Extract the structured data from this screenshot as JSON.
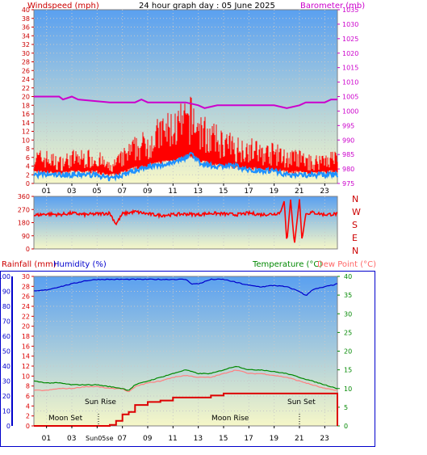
{
  "header": {
    "left_title": "Windspeed (mph)",
    "center_title": "24 hour graph day : 05 June 2025",
    "right_title": "Barometer (mb)"
  },
  "colors": {
    "wind_axis": "#cc0000",
    "baro_axis": "#cc00cc",
    "wind_speed": "#ff0000",
    "wind_gust": "#ff0000",
    "wind_avg": "#1e90ff",
    "barometer": "#cc00cc",
    "direction": "#ff0000",
    "humidity": "#0000cc",
    "rain": "#dd0000",
    "temperature": "#008800",
    "dewpoint": "#ff8080",
    "temp_axis": "#008800",
    "dew_axis": "#ff6666",
    "sky_top": "#5aa0f0",
    "sky_bottom": "#f6f7c8"
  },
  "x_axis": {
    "ticks": [
      "01",
      "03",
      "05",
      "07",
      "09",
      "11",
      "13",
      "15",
      "17",
      "19",
      "21",
      "23"
    ]
  },
  "panel1": {
    "wind_ticks": [
      "0",
      "2",
      "4",
      "6",
      "8",
      "10",
      "12",
      "14",
      "16",
      "18",
      "20",
      "22",
      "24",
      "26",
      "28",
      "30",
      "32",
      "34",
      "36",
      "38",
      "40"
    ],
    "baro_ticks": [
      "975",
      "980",
      "985",
      "990",
      "995",
      "1000",
      "1005",
      "1010",
      "1015",
      "1020",
      "1025",
      "1030",
      "1035"
    ]
  },
  "panel2": {
    "deg_ticks": [
      "360",
      "270",
      "180",
      "90",
      "0"
    ],
    "compass": [
      "N",
      "W",
      "S",
      "E",
      "N"
    ]
  },
  "panel3": {
    "rain_label": "Rainfall (mm)",
    "humidity_label": "Humidity (%)",
    "temp_label": "Temperature (°C)",
    "dew_label": "Dew Point (°C)",
    "humidity_ticks": [
      "0",
      "10",
      "20",
      "30",
      "40",
      "50",
      "60",
      "70",
      "80",
      "90",
      "100"
    ],
    "rain_ticks": [
      "0",
      "2",
      "4",
      "6",
      "8",
      "10",
      "12",
      "14",
      "16",
      "18",
      "20",
      "22",
      "24",
      "26",
      "28",
      "30"
    ],
    "temp_ticks": [
      "0",
      "5",
      "10",
      "15",
      "20",
      "25",
      "30",
      "35",
      "40"
    ],
    "annotations": {
      "moon_set": "Moon Set",
      "sun_rise": "Sun Rise",
      "moon_rise": "Moon Rise",
      "sun_set": "Sun Set",
      "x_sunrise_label": "Sun05se"
    }
  },
  "chart_data": [
    {
      "type": "line",
      "title": "24 hour graph day : 05 June 2025",
      "xlabel": "",
      "ylabel": "Windspeed (mph)",
      "y2label": "Barometer (mb)",
      "xlim": [
        0,
        24
      ],
      "ylim": [
        0,
        40
      ],
      "y2lim": [
        975,
        1035
      ],
      "x_unit": "hour",
      "series": [
        {
          "name": "Gust",
          "axis": "left",
          "x": [
            0,
            1,
            2,
            3,
            4,
            5,
            6,
            7,
            8,
            9,
            10,
            11,
            12,
            12.5,
            13,
            14,
            15,
            16,
            17,
            18,
            19,
            20,
            21,
            22,
            23,
            24
          ],
          "values": [
            5,
            5,
            4,
            5,
            5,
            5,
            3,
            5,
            7,
            8,
            10,
            11,
            12,
            13,
            11,
            9,
            8,
            7,
            7,
            6,
            6,
            5,
            5,
            4,
            5,
            5
          ]
        },
        {
          "name": "Average",
          "axis": "left",
          "x": [
            0,
            1,
            2,
            3,
            4,
            5,
            6,
            7,
            8,
            9,
            10,
            11,
            12,
            12.5,
            13,
            14,
            15,
            16,
            17,
            18,
            19,
            20,
            21,
            22,
            23,
            24
          ],
          "values": [
            2,
            2,
            2,
            2,
            2,
            2,
            1,
            2,
            3,
            4,
            4,
            5,
            6,
            7,
            5,
            4,
            4,
            4,
            3,
            3,
            3,
            2,
            2,
            2,
            2,
            2
          ]
        },
        {
          "name": "Barometer",
          "axis": "right",
          "x": [
            0,
            2,
            2.3,
            3,
            3.5,
            6,
            7,
            8,
            8.5,
            9,
            10,
            12,
            13,
            13.5,
            14.5,
            15,
            16,
            18,
            19,
            20,
            21,
            21.5,
            22,
            23,
            23.5,
            24
          ],
          "values": [
            1005,
            1005,
            1004,
            1005,
            1004,
            1003,
            1003,
            1003,
            1004,
            1003,
            1003,
            1003,
            1002,
            1001,
            1002,
            1002,
            1002,
            1002,
            1002,
            1001,
            1002,
            1003,
            1003,
            1003,
            1004,
            1004
          ]
        }
      ]
    },
    {
      "type": "line",
      "title": "",
      "ylabel": "Wind direction",
      "xlim": [
        0,
        24
      ],
      "ylim": [
        0,
        360
      ],
      "series": [
        {
          "name": "Direction",
          "x": [
            0,
            1,
            2,
            3,
            4,
            5,
            6,
            6.5,
            7,
            8,
            9,
            10,
            11,
            12,
            13,
            14,
            15,
            16,
            17,
            18,
            19,
            19.5,
            19.8,
            20,
            20.3,
            20.6,
            21,
            21.2,
            21.5,
            22,
            23,
            24
          ],
          "values": [
            230,
            240,
            235,
            245,
            235,
            240,
            245,
            170,
            240,
            255,
            240,
            230,
            235,
            240,
            235,
            245,
            240,
            235,
            245,
            235,
            240,
            250,
            330,
            40,
            340,
            30,
            340,
            60,
            240,
            250,
            235,
            240
          ]
        }
      ]
    },
    {
      "type": "line",
      "title": "",
      "ylabel": "Humidity (%)",
      "xlim": [
        0,
        24
      ],
      "ylim": [
        0,
        100
      ],
      "series": [
        {
          "name": "Humidity",
          "axis": "humidity",
          "x": [
            0,
            1,
            2,
            3,
            4,
            5,
            6,
            7,
            8,
            9,
            10,
            11,
            12,
            12.5,
            13,
            14,
            15,
            16,
            17,
            18,
            19,
            20,
            21,
            21.5,
            22,
            23,
            24
          ],
          "values": [
            90,
            91,
            93,
            95,
            97,
            98,
            98,
            98,
            98,
            98,
            98,
            98,
            98,
            95,
            95,
            98,
            98,
            96,
            94,
            93,
            94,
            93,
            90,
            87,
            91,
            93,
            95
          ]
        },
        {
          "name": "Rainfall",
          "axis": "rain",
          "x": [
            0,
            5,
            6,
            6.5,
            7,
            7.5,
            8,
            9,
            10,
            11,
            13,
            14,
            15,
            24,
            24
          ],
          "values": [
            0,
            0,
            0.2,
            1.0,
            2.3,
            2.8,
            4.2,
            4.8,
            5.1,
            5.7,
            5.7,
            6.1,
            6.5,
            6.5,
            0
          ]
        },
        {
          "name": "Temperature",
          "axis": "temp",
          "x": [
            0,
            1,
            2,
            3,
            4,
            5,
            6,
            7,
            7.5,
            8,
            9,
            10,
            11,
            12,
            13,
            14,
            15,
            16,
            17,
            18,
            19,
            20,
            21,
            22,
            23,
            24
          ],
          "values": [
            12,
            11.5,
            11.5,
            11,
            11,
            11,
            10.5,
            10,
            9.5,
            11,
            12,
            13,
            14,
            15,
            14,
            14,
            15,
            16,
            15,
            15,
            14.5,
            14,
            13,
            12,
            11,
            10
          ]
        },
        {
          "name": "Dew Point",
          "axis": "temp",
          "x": [
            0,
            1,
            2,
            3,
            4,
            5,
            6,
            7,
            7.5,
            8,
            9,
            10,
            11,
            12,
            13,
            14,
            15,
            16,
            17,
            18,
            19,
            20,
            21,
            22,
            23,
            24
          ],
          "values": [
            9.5,
            9.5,
            10,
            10,
            10.5,
            10.5,
            10,
            10,
            9,
            10.5,
            11.5,
            12,
            13,
            13.5,
            13,
            13,
            14,
            15,
            14,
            14,
            13.5,
            13,
            12,
            11,
            10,
            9.5
          ]
        }
      ]
    }
  ]
}
